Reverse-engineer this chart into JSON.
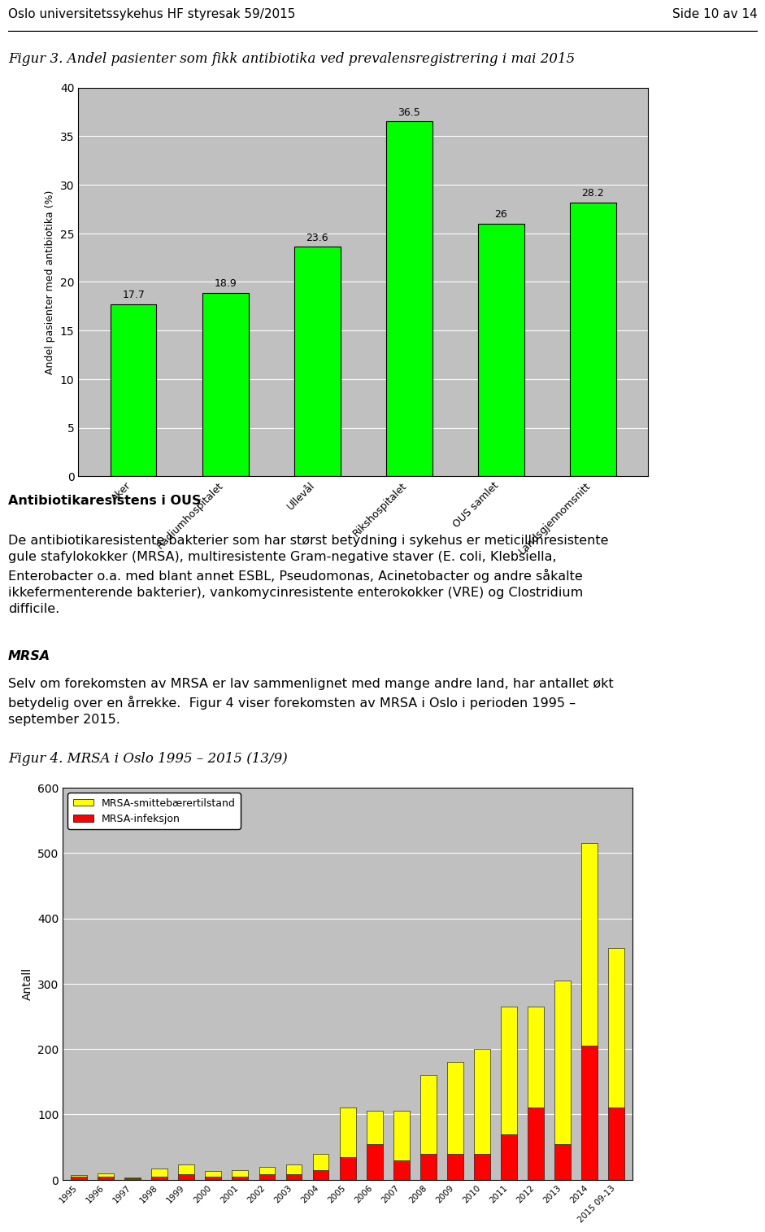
{
  "header_left": "Oslo universitetssykehus HF styresak 59/2015",
  "header_right": "Side 10 av 14",
  "fig3_title": "Figur 3. Andel pasienter som fikk antibiotika ved prevalensregistrering i mai 2015",
  "fig3_categories": [
    "Aker",
    "Radiumhospitalet",
    "Ullevål",
    "Rikshospitalet",
    "OUS samlet",
    "Landsgjennomsnitt"
  ],
  "fig3_values": [
    17.7,
    18.9,
    23.6,
    36.5,
    26.0,
    28.2
  ],
  "fig3_bar_color": "#00FF00",
  "fig3_bar_edge": "#000000",
  "fig3_ylabel": "Andel pasienter med antibiotika (%)",
  "fig3_ylim": [
    0,
    40
  ],
  "fig3_yticks": [
    0,
    5,
    10,
    15,
    20,
    25,
    30,
    35,
    40
  ],
  "fig3_bg": "#C0C0C0",
  "section_heading": "Antibiotikaresistens i OUS",
  "section_line1": "De antibiotikaresistente bakterier som har størst betydning i sykehus er meticillinresistente",
  "section_line2": "gule stafylokokker (MRSA), multiresistente Gram-negative staver (E. coli, Klebsiella,",
  "section_line3": "Enterobacter o.a. med blant annet ESBL, Pseudomonas, Acinetobacter og andre såkalte",
  "section_line4": "ikkefermenterende bakterier), vankomycinresistente enterokokker (VRE) og Clostridium",
  "section_line5": "difficile.",
  "mrsa_heading": "MRSA",
  "mrsa_line1": "Selv om forekomsten av MRSA er lav sammenlignet med mange andre land, har antallet økt",
  "mrsa_line2": "betydelig over en årrekke.  Figur 4 viser forekomsten av MRSA i Oslo i perioden 1995 –",
  "mrsa_line3": "september 2015.",
  "fig4_title": "Figur 4. MRSA i Oslo 1995 – 2015 (13/9)",
  "fig4_years": [
    "1995",
    "1996",
    "1997",
    "1998",
    "1999",
    "2000",
    "2001",
    "2002",
    "2003",
    "2004",
    "2005",
    "2006",
    "2007",
    "2008",
    "2009",
    "2010",
    "2011",
    "2012",
    "2013",
    "2014",
    "2015 09-13"
  ],
  "fig4_smitte": [
    2,
    5,
    1,
    12,
    15,
    8,
    10,
    12,
    15,
    25,
    75,
    50,
    75,
    120,
    140,
    160,
    195,
    155,
    250,
    310,
    245
  ],
  "fig4_infeksjon": [
    5,
    5,
    2,
    5,
    8,
    5,
    5,
    8,
    8,
    15,
    35,
    55,
    30,
    40,
    40,
    40,
    70,
    110,
    55,
    205,
    110
  ],
  "fig4_color_smitte": "#FFFF00",
  "fig4_color_infeksjon": "#FF0000",
  "fig4_ylabel": "Antall",
  "fig4_ylim": [
    0,
    600
  ],
  "fig4_yticks": [
    0,
    100,
    200,
    300,
    400,
    500,
    600
  ],
  "fig4_bg": "#C0C0C0",
  "fig4_legend_smitte": "MRSA-smittebærertilstand",
  "fig4_legend_infeksjon": "MRSA-infeksjon"
}
